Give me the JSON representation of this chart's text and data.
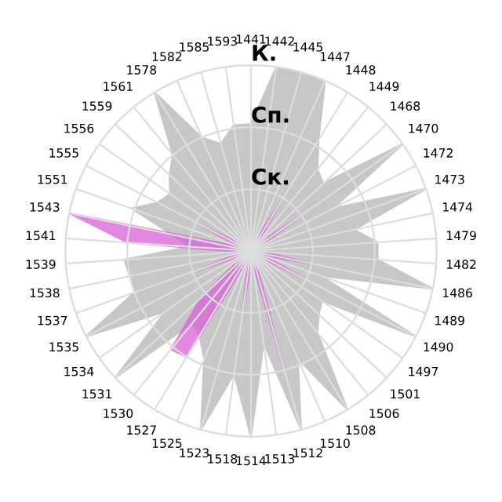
{
  "chart_data": {
    "type": "radar",
    "categories": [
      "1441",
      "1442",
      "1445",
      "1447",
      "1448",
      "1449",
      "1468",
      "1470",
      "1472",
      "1473",
      "1474",
      "1479",
      "1482",
      "1486",
      "1489",
      "1490",
      "1497",
      "1501",
      "1506",
      "1508",
      "1510",
      "1512",
      "1513",
      "1514",
      "1518",
      "1523",
      "1525",
      "1527",
      "1530",
      "1531",
      "1534",
      "1535",
      "1537",
      "1538",
      "1539",
      "1541",
      "1543",
      "1551",
      "1555",
      "1556",
      "1559",
      "1561",
      "1578",
      "1582",
      "1585",
      "1593"
    ],
    "series": [
      {
        "color": "#b4b4b4",
        "values": [
          2.05,
          3.0,
          3.0,
          3.0,
          2.1,
          1.7,
          1.6,
          3.0,
          1.5,
          3.0,
          1.7,
          2.05,
          2.05,
          3.0,
          1.2,
          3.0,
          1.4,
          1.5,
          1.7,
          3.0,
          1.9,
          3.0,
          1.5,
          3.0,
          2.0,
          3.0,
          1.9,
          1.6,
          1.5,
          3.0,
          1.7,
          3.0,
          2.0,
          2.0,
          2.05,
          1.0,
          1.3,
          2.05,
          1.7,
          1.6,
          1.8,
          2.0,
          3.0,
          2.0,
          1.8,
          2.05
        ]
      },
      {
        "color": "#d95fd9",
        "values": [
          0.2,
          0.2,
          0.2,
          0.2,
          1.0,
          0.2,
          0.2,
          1.0,
          0.2,
          0.2,
          0.2,
          0.2,
          0.2,
          1.0,
          0.2,
          1.0,
          0.2,
          0.2,
          0.2,
          0.2,
          0.2,
          2.0,
          0.2,
          0.2,
          1.0,
          0.2,
          0.2,
          2.0,
          2.05,
          1.1,
          0.2,
          0.2,
          1.0,
          0.2,
          0.2,
          2.0,
          3.0,
          0.2,
          1.0,
          0.2,
          0.2,
          0.2,
          0.2,
          0.2,
          0.2,
          0.2
        ]
      }
    ],
    "ylim": [
      0,
      3
    ],
    "yticks": [
      {
        "value": 1,
        "label": "Ск."
      },
      {
        "value": 2,
        "label": "Сп."
      },
      {
        "value": 3,
        "label": "К."
      }
    ],
    "grid": true
  }
}
